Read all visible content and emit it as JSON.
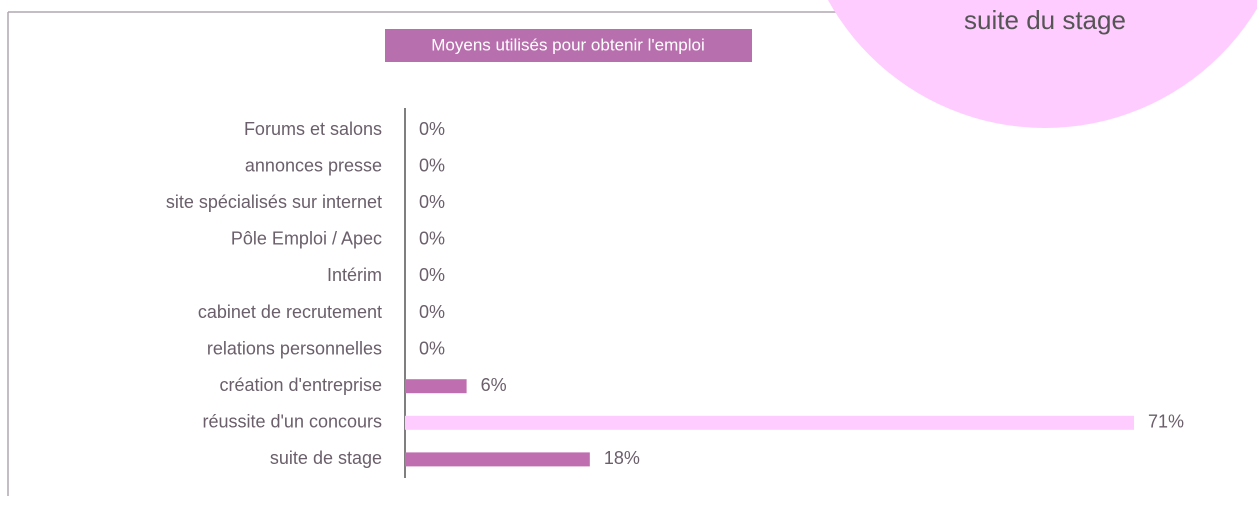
{
  "chart_data": {
    "type": "bar",
    "orientation": "horizontal",
    "title": "Moyens utilisés pour obtenir l'emploi",
    "annotation": "suite du stage",
    "categories": [
      "Forums et salons",
      "annonces presse",
      "site spécialisés sur internet",
      "Pôle Emploi / Apec",
      "Intérim",
      "cabinet de recrutement",
      "relations personnelles",
      "création d'entreprise",
      "réussite d'un concours",
      "suite de stage"
    ],
    "values": [
      0,
      0,
      0,
      0,
      0,
      0,
      0,
      6,
      71,
      18
    ],
    "value_labels": [
      "0%",
      "0%",
      "0%",
      "0%",
      "0%",
      "0%",
      "0%",
      "6%",
      "71%",
      "18%"
    ],
    "colors": [
      "#bf6fb0",
      "#bf6fb0",
      "#bf6fb0",
      "#bf6fb0",
      "#bf6fb0",
      "#bf6fb0",
      "#bf6fb0",
      "#bf6fb0",
      "#ffccff",
      "#bf6fb0"
    ]
  }
}
